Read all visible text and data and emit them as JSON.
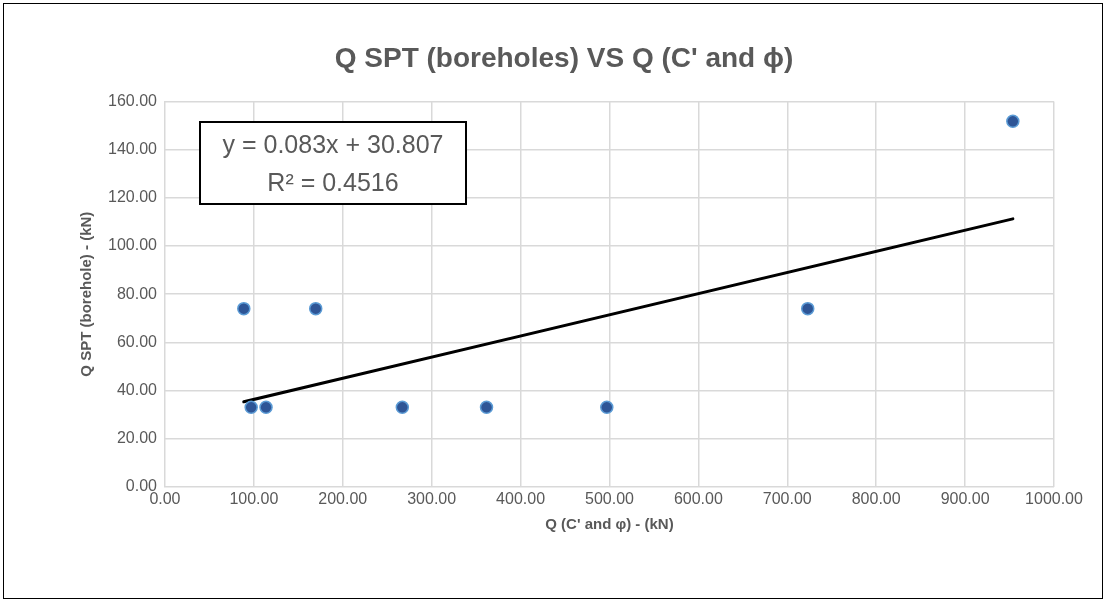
{
  "chart_data": {
    "type": "scatter",
    "title": "Q SPT (boreholes) VS Q (C' and ϕ)",
    "xlabel": "Q (C' and φ) - (kN)",
    "ylabel": "Q SPT (borehole) - (kN)",
    "series": [
      {
        "type": "scatter",
        "color": "#2e5596",
        "x": [
          88.7,
          97,
          113.7,
          169.6,
          267,
          361.7,
          497,
          723,
          953.7
        ],
        "values": [
          74,
          33,
          33,
          74,
          33,
          33,
          33,
          74,
          151.8
        ]
      },
      {
        "type": "line",
        "color": "#000000",
        "marker": "none",
        "x": [
          88.7,
          953.7
        ],
        "values": [
          35.3,
          111.3
        ]
      }
    ],
    "xlim": [
      0,
      1000
    ],
    "xticks": [
      {
        "value": 0,
        "label": "0.00"
      },
      {
        "value": 100,
        "label": "100.00"
      },
      {
        "value": 200,
        "label": "200.00"
      },
      {
        "value": 300,
        "label": "300.00"
      },
      {
        "value": 400,
        "label": "400.00"
      },
      {
        "value": 500,
        "label": "500.00"
      },
      {
        "value": 600,
        "label": "600.00"
      },
      {
        "value": 700,
        "label": "700.00"
      },
      {
        "value": 800,
        "label": "800.00"
      },
      {
        "value": 900,
        "label": "900.00"
      },
      {
        "value": 1000,
        "label": "1000.00"
      }
    ],
    "ylim": [
      0,
      160
    ],
    "yticks": [
      {
        "value": 0,
        "label": "0.00"
      },
      {
        "value": 20,
        "label": "20.00"
      },
      {
        "value": 40,
        "label": "40.00"
      },
      {
        "value": 60,
        "label": "60.00"
      },
      {
        "value": 80,
        "label": "80.00"
      },
      {
        "value": 100,
        "label": "100.00"
      },
      {
        "value": 120,
        "label": "120.00"
      },
      {
        "value": 140,
        "label": "140.00"
      },
      {
        "value": 160,
        "label": "160.00"
      }
    ],
    "grid": true,
    "marker": "circle",
    "line_style": "solid",
    "annotations": [
      "y = 0.083x + 30.807",
      "R² = 0.4516"
    ]
  }
}
